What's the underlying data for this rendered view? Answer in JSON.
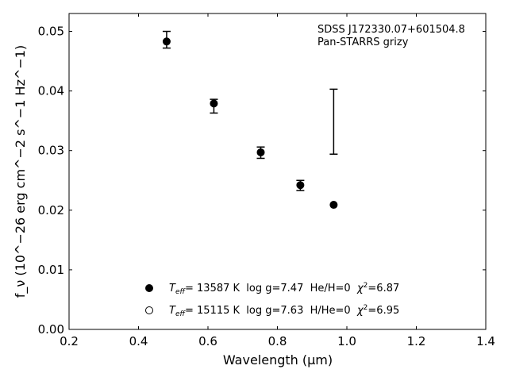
{
  "chart_data": {
    "type": "scatter",
    "xlabel": "Wavelength (μm)",
    "ylabel": "f_ν (10^−26 erg cm^−2 s^−1 Hz^−1)",
    "xlim": [
      0.2,
      1.4
    ],
    "ylim": [
      0.0,
      0.053
    ],
    "x_ticks": [
      0.2,
      0.4,
      0.6,
      0.8,
      1.0,
      1.2,
      1.4
    ],
    "x_tick_labels": [
      "0.2",
      "0.4",
      "0.6",
      "0.8",
      "1.0",
      "1.2",
      "1.4"
    ],
    "y_ticks": [
      0.0,
      0.01,
      0.02,
      0.03,
      0.04,
      0.05
    ],
    "y_tick_labels": [
      "0.00",
      "0.01",
      "0.02",
      "0.03",
      "0.04",
      "0.05"
    ],
    "grid": false,
    "annotation": [
      "SDSS J172330.07+601504.8",
      "Pan-STARRS grizy"
    ],
    "errorbar_series": {
      "x": [
        0.481,
        0.617,
        0.752,
        0.866,
        0.962
      ],
      "y_low": [
        0.0472,
        0.0363,
        0.0287,
        0.0233,
        0.0294
      ],
      "y_high": [
        0.05,
        0.0386,
        0.0306,
        0.025,
        0.0403
      ]
    },
    "series": [
      {
        "marker": "filled-circle",
        "x": [
          0.481,
          0.617,
          0.752,
          0.866,
          0.962
        ],
        "y": [
          0.0483,
          0.0379,
          0.0297,
          0.0242,
          0.0209
        ]
      },
      {
        "marker": "open-circle",
        "x": [],
        "y": []
      }
    ],
    "legend": {
      "placement": "lower-center",
      "entries": [
        {
          "marker": "filled-circle",
          "teff_label": "T",
          "teff_sub": "eff",
          "text": "= 13587 K  log g=7.47  He/H=0  ",
          "chi_label": "χ",
          "chi_sup": "2",
          "chi_value": "=6.87"
        },
        {
          "marker": "open-circle",
          "teff_label": "T",
          "teff_sub": "eff",
          "text": "= 15115 K  log g=7.63  H/He=0  ",
          "chi_label": "χ",
          "chi_sup": "2",
          "chi_value": "=6.95"
        }
      ]
    }
  }
}
